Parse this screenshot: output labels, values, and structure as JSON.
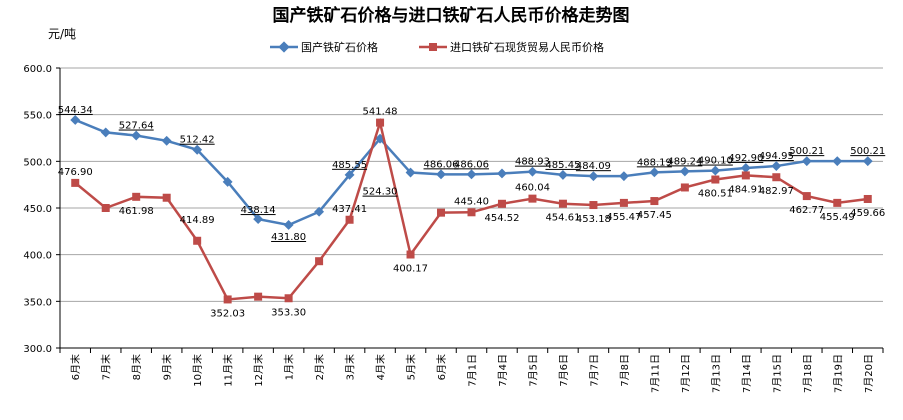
{
  "chart_data": {
    "type": "line",
    "title": "国产铁矿石价格与进口铁矿石人民币价格走势图",
    "ylabel": "元/吨",
    "xlabel": "",
    "ylim": [
      300,
      600
    ],
    "yticks": [
      "300.0",
      "350.0",
      "400.0",
      "450.0",
      "500.0",
      "550.0",
      "600.0"
    ],
    "grid": true,
    "legend_position": "top",
    "categories": [
      "6月末",
      "7月末",
      "8月末",
      "9月末",
      "10月末",
      "11月末",
      "12月末",
      "1月末",
      "2月末",
      "3月末",
      "4月末",
      "5月末",
      "6月末",
      "7月1日",
      "7月4日",
      "7月5日",
      "7月6日",
      "7月7日",
      "7月8日",
      "7月11日",
      "7月12日",
      "7月13日",
      "7月14日",
      "7月15日",
      "7月18日",
      "7月19日",
      "7月20日"
    ],
    "series": [
      {
        "name": "国产铁矿石价格",
        "color": "#4a7ebb",
        "marker": "diamond",
        "values": [
          544.34,
          531,
          527.64,
          522,
          512.42,
          478,
          438.14,
          431.8,
          446,
          485.55,
          524.3,
          488,
          486.06,
          486.06,
          487,
          488.93,
          485.45,
          484.09,
          484.09,
          488.19,
          489.24,
          490.1,
          492.9,
          494.95,
          500.21,
          500.21,
          500.21
        ],
        "labels": [
          "544.34",
          "",
          "527.64",
          "",
          "512.42",
          "",
          "438.14",
          "431.80",
          "",
          "485.55",
          "524.30",
          "",
          "486.06",
          "486.06",
          "",
          "488.93",
          "485.45",
          "484.09",
          "",
          "488.19",
          "489.24",
          "490.10",
          "492.90",
          "494.95",
          "500.21",
          "",
          "500.21"
        ]
      },
      {
        "name": "进口铁矿石现货贸易人民币价格",
        "color": "#be4b48",
        "marker": "square",
        "values": [
          476.9,
          450,
          461.98,
          461,
          414.89,
          352.03,
          355,
          353.3,
          393,
          437.41,
          541.48,
          400.17,
          445,
          445.4,
          454.52,
          460.04,
          454.61,
          453.18,
          455.47,
          457.45,
          472,
          480.51,
          484.91,
          482.97,
          462.77,
          455.49,
          459.66
        ],
        "labels": [
          "476.90",
          "",
          "461.98",
          "",
          "414.89",
          "352.03",
          "",
          "353.30",
          "",
          "437.41",
          "541.48",
          "400.17",
          "",
          "445.40",
          "454.52",
          "460.04",
          "454.61",
          "453.18",
          "455.47",
          "457.45",
          "",
          "480.51",
          "484.91",
          "482.97",
          "462.77",
          "455.49",
          "459.66"
        ]
      }
    ]
  }
}
